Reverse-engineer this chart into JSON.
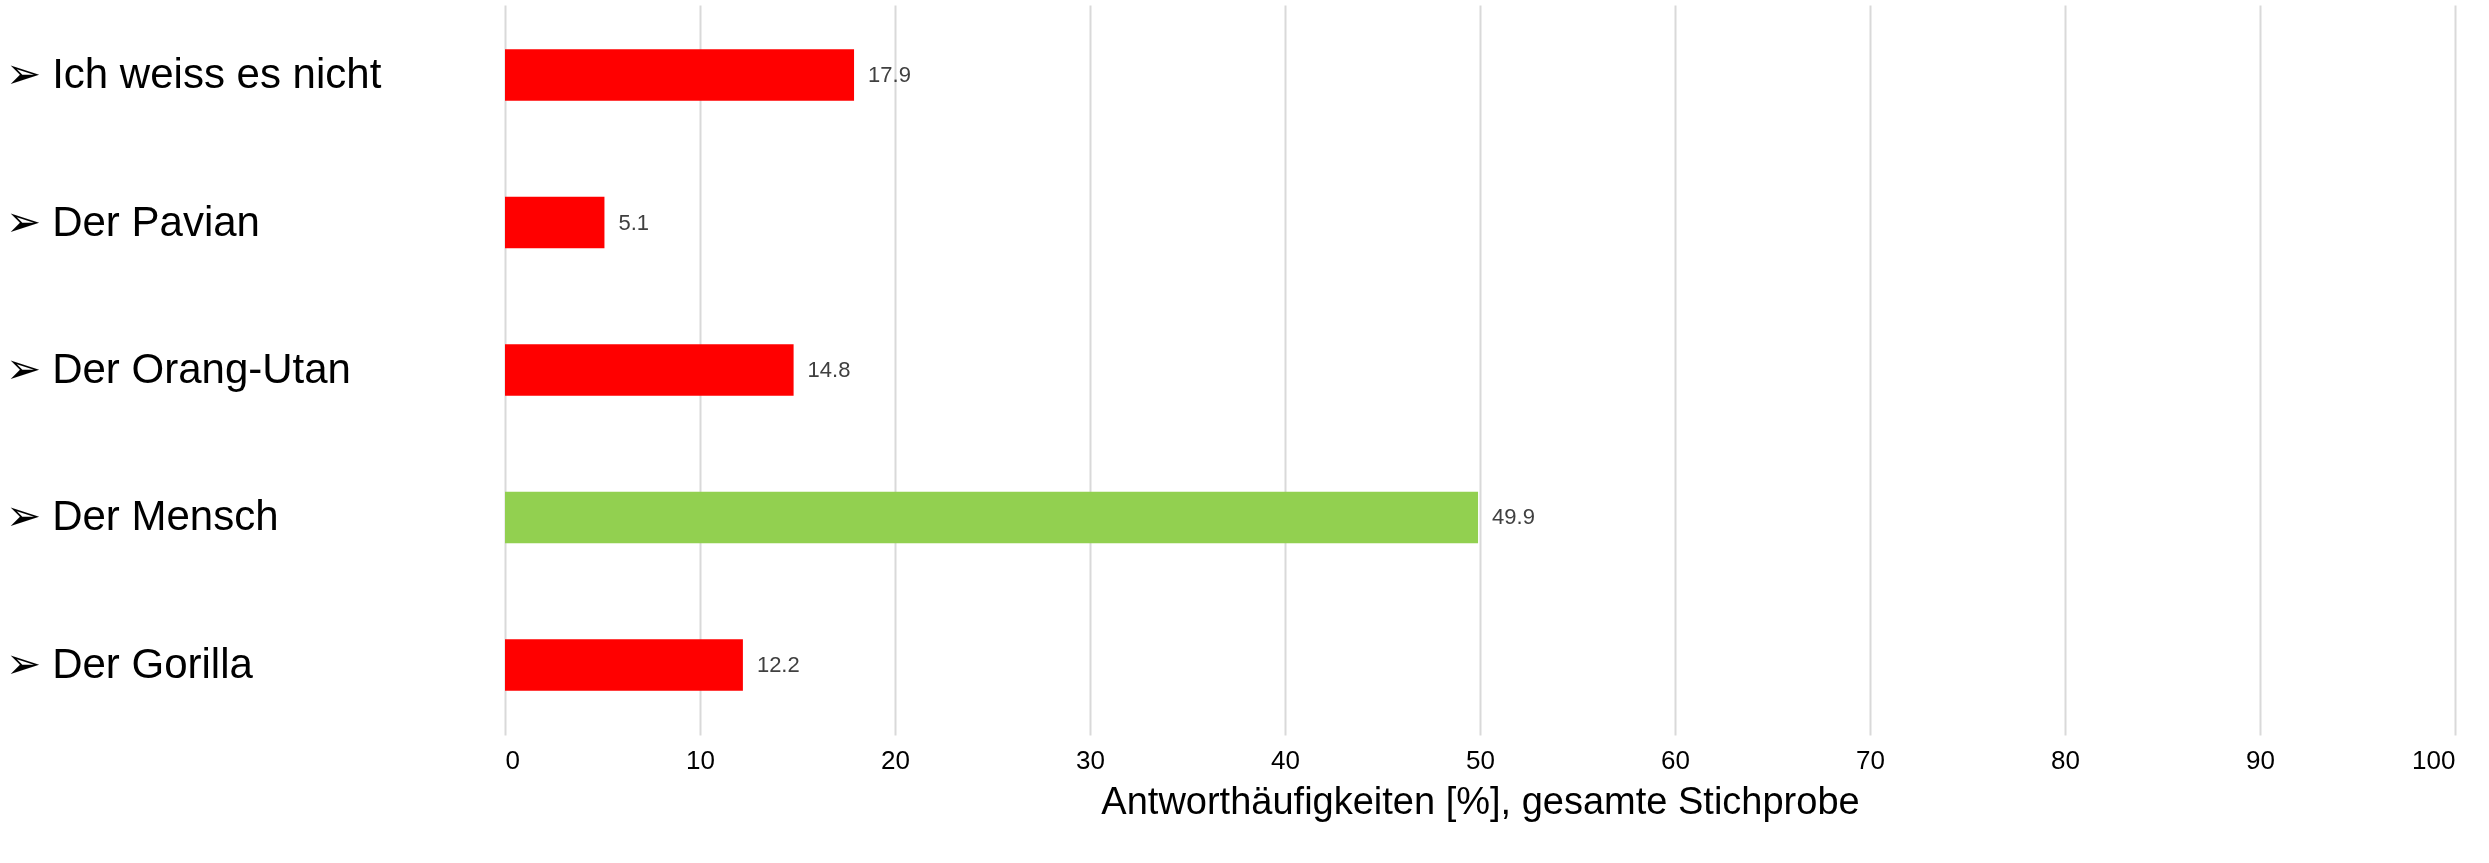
{
  "chart_data": {
    "type": "bar",
    "orientation": "horizontal",
    "xlabel": "Antworthäufigkeiten [%], gesamte Stichprobe",
    "categories": [
      "➢ Ich weiss es nicht",
      "➢ Der Pavian",
      "➢ Der Orang-Utan",
      "➢ Der Mensch",
      "➢ Der Gorilla"
    ],
    "values": [
      17.9,
      5.1,
      14.8,
      49.9,
      12.2
    ],
    "colors": [
      "#ff0000",
      "#ff0000",
      "#ff0000",
      "#92d050",
      "#ff0000"
    ],
    "xlim": [
      0,
      100
    ],
    "xticks": [
      0,
      10,
      20,
      30,
      40,
      50,
      60,
      70,
      80,
      90,
      100
    ],
    "grid": "x",
    "data_labels": true
  }
}
